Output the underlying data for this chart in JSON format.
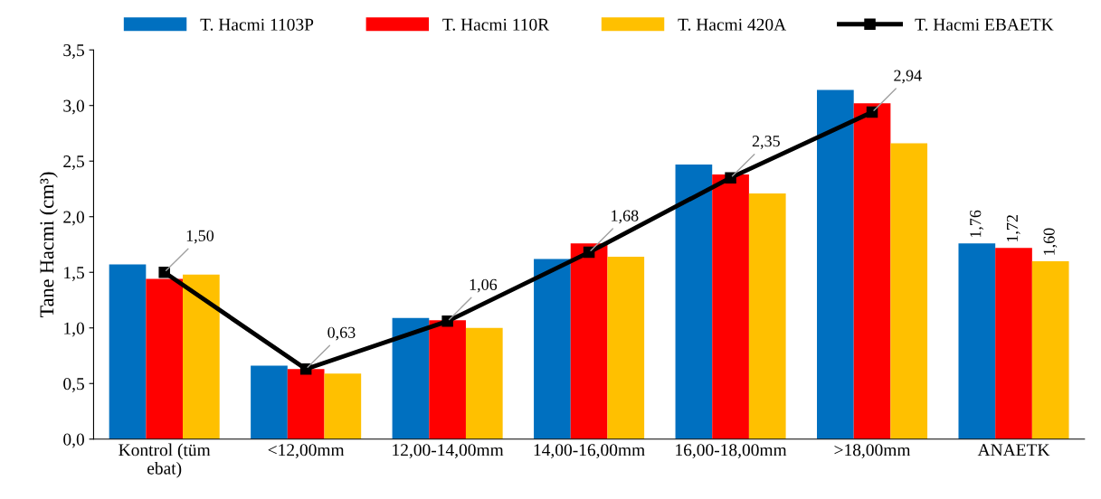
{
  "chart_data": {
    "type": "bar",
    "ylabel": "Tane Hacmi (cm³)",
    "categories": [
      "Kontrol (tüm\nebat)",
      "<12,00mm",
      "12,00-14,00mm",
      "14,00-16,00mm",
      "16,00-18,00mm",
      ">18,00mm",
      "ANAETK"
    ],
    "series": [
      {
        "name": "T. Hacmi 1103P",
        "color": "#0070c0",
        "values": [
          1.57,
          0.66,
          1.09,
          1.62,
          2.47,
          3.14,
          1.76
        ],
        "value_labels": [
          null,
          null,
          null,
          null,
          null,
          null,
          "1,76"
        ]
      },
      {
        "name": "T. Hacmi 110R",
        "color": "#ff0000",
        "values": [
          1.44,
          0.63,
          1.07,
          1.76,
          2.38,
          3.02,
          1.72
        ],
        "value_labels": [
          null,
          null,
          null,
          null,
          null,
          null,
          "1,72"
        ]
      },
      {
        "name": "T. Hacmi 420A",
        "color": "#ffc000",
        "values": [
          1.48,
          0.59,
          1.0,
          1.64,
          2.21,
          2.66,
          1.6
        ],
        "value_labels": [
          null,
          null,
          null,
          null,
          null,
          null,
          "1,60"
        ]
      },
      {
        "name": "T. Hacmi EBAETK",
        "color": "#000000",
        "type": "line",
        "marker": "square",
        "values": [
          1.5,
          0.63,
          1.06,
          1.68,
          2.35,
          2.94,
          null
        ],
        "value_labels": [
          "1,50",
          "0,63",
          "1,06",
          "1,68",
          "2,35",
          "2,94",
          null
        ]
      }
    ],
    "ylim": [
      0,
      3.5
    ],
    "yticks": [
      {
        "value": 0,
        "label": "0,0"
      },
      {
        "value": 0.5,
        "label": "0,5"
      },
      {
        "value": 1,
        "label": "1,0"
      },
      {
        "value": 1.5,
        "label": "1,5"
      },
      {
        "value": 2,
        "label": "2,0"
      },
      {
        "value": 2.5,
        "label": "2,5"
      },
      {
        "value": 3,
        "label": "3,0"
      },
      {
        "value": 3.5,
        "label": "3,5"
      }
    ],
    "grid": false,
    "legend": "top"
  }
}
